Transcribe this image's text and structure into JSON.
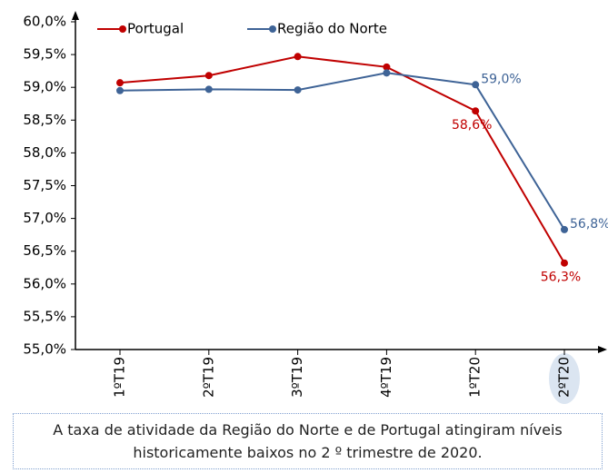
{
  "chart_data": {
    "type": "line",
    "categories": [
      "1ºT19",
      "2ºT19",
      "3ºT19",
      "4ºT19",
      "1ºT20",
      "2ºT20"
    ],
    "series": [
      {
        "name": "Portugal",
        "color": "#c00000",
        "values": [
          59.07,
          59.18,
          59.47,
          59.31,
          58.64,
          56.32
        ],
        "value_labels": [
          null,
          null,
          null,
          null,
          "58,6%",
          "56,3%"
        ]
      },
      {
        "name": "Região do Norte",
        "color": "#3e6396",
        "values": [
          58.95,
          58.97,
          58.96,
          59.22,
          59.04,
          56.83
        ],
        "value_labels": [
          null,
          null,
          null,
          null,
          "59,0%",
          "56,8%"
        ]
      }
    ],
    "ylim": [
      55,
      60
    ],
    "yticks": [
      {
        "value": 55,
        "label": "55,0%"
      },
      {
        "value": 55.5,
        "label": "55,5%"
      },
      {
        "value": 56,
        "label": "56,0%"
      },
      {
        "value": 56.5,
        "label": "56,5%"
      },
      {
        "value": 57,
        "label": "57,0%"
      },
      {
        "value": 57.5,
        "label": "57,5%"
      },
      {
        "value": 58,
        "label": "58,0%"
      },
      {
        "value": 58.5,
        "label": "58,5%"
      },
      {
        "value": 59,
        "label": "59,0%"
      },
      {
        "value": 59.5,
        "label": "59,5%"
      },
      {
        "value": 60,
        "label": "60,0%"
      }
    ],
    "grid": false
  },
  "note": "A taxa de atividade da Região do Norte e de Portugal atingiram níveis historicamente baixos no 2 º trimestre de 2020."
}
